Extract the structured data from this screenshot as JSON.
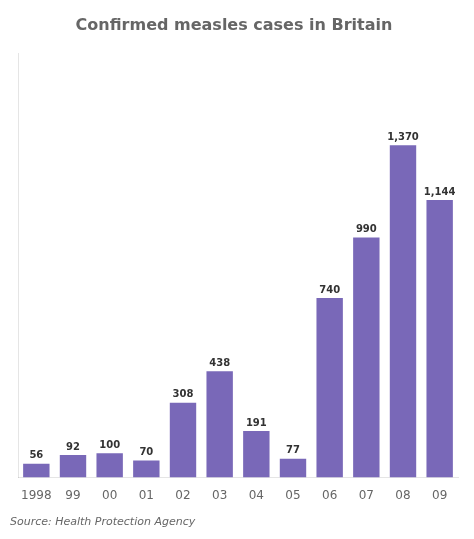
{
  "chart_data": {
    "type": "bar",
    "title": "Confirmed measles cases in Britain",
    "categories": [
      "1998",
      "99",
      "00",
      "01",
      "02",
      "03",
      "04",
      "05",
      "06",
      "07",
      "08",
      "09"
    ],
    "values": [
      56,
      92,
      100,
      70,
      308,
      438,
      191,
      77,
      740,
      990,
      1370,
      1144
    ],
    "value_labels": [
      "56",
      "92",
      "100",
      "70",
      "308",
      "438",
      "191",
      "77",
      "740",
      "990",
      "1,370",
      "1,144"
    ],
    "color": "#7968b8",
    "ylim": [
      0,
      1750
    ],
    "grid": false,
    "tick_labels": "x",
    "data_labels": true,
    "annotations": [
      "Source: Health Protection Agency"
    ]
  }
}
